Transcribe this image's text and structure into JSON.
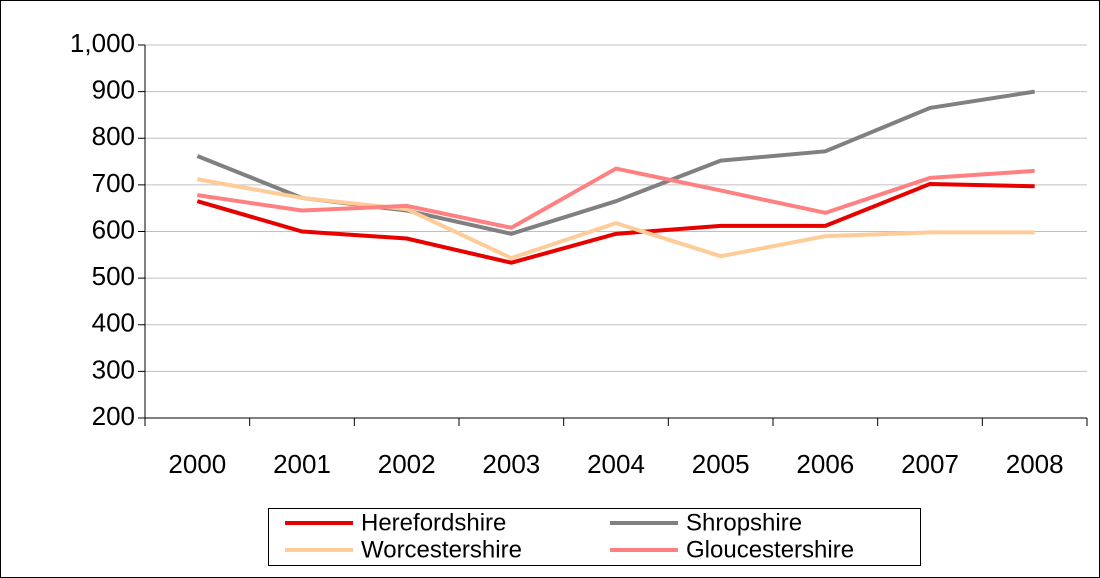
{
  "chart_data": {
    "type": "line",
    "categories": [
      "2000",
      "2001",
      "2002",
      "2003",
      "2004",
      "2005",
      "2006",
      "2007",
      "2008"
    ],
    "series": [
      {
        "name": "Herefordshire",
        "color": "#e60000",
        "values": [
          665,
          600,
          585,
          533,
          595,
          612,
          612,
          702,
          697
        ]
      },
      {
        "name": "Shropshire",
        "color": "#808080",
        "values": [
          762,
          672,
          645,
          595,
          665,
          752,
          772,
          865,
          900
        ]
      },
      {
        "name": "Worcestershire",
        "color": "#ffcc99",
        "values": [
          712,
          672,
          648,
          543,
          618,
          547,
          590,
          598,
          598
        ]
      },
      {
        "name": "Gloucestershire",
        "color": "#ff8080",
        "values": [
          678,
          645,
          655,
          608,
          735,
          688,
          640,
          715,
          730
        ]
      }
    ],
    "ylim": [
      200,
      1000
    ],
    "yticks": [
      200,
      300,
      400,
      500,
      600,
      700,
      800,
      900,
      {
        "value": 1000,
        "label": "1,000"
      }
    ],
    "grid": true,
    "legend": "bottom"
  }
}
